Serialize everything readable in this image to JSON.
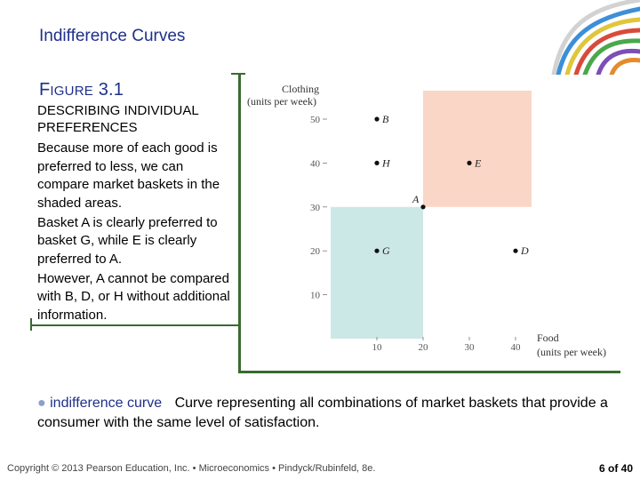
{
  "slide_title": "Indifference Curves",
  "figure": {
    "label_big": "F",
    "label_small": "IGURE",
    "label_num": "3.1",
    "heading": "DESCRIBING INDIVIDUAL PREFERENCES",
    "caption": [
      "Because more of each good is preferred to less, we can compare market baskets in the shaded areas.",
      "Basket A is clearly preferred to basket G, while E is clearly preferred to A.",
      "However, A cannot be compared with B, D, or H without additional information."
    ]
  },
  "chart_data": {
    "type": "scatter",
    "ylabel": "Clothing",
    "ylabel_units": "(units per week)",
    "xlabel": "Food",
    "xlabel_units": "(units per week)",
    "xlim": [
      0,
      40
    ],
    "ylim": [
      0,
      50
    ],
    "x_ticks": [
      10,
      20,
      30,
      40
    ],
    "y_ticks": [
      10,
      20,
      30,
      40,
      50
    ],
    "points": [
      {
        "name": "A",
        "x": 20,
        "y": 30
      },
      {
        "name": "B",
        "x": 10,
        "y": 50
      },
      {
        "name": "D",
        "x": 40,
        "y": 20
      },
      {
        "name": "E",
        "x": 30,
        "y": 40
      },
      {
        "name": "G",
        "x": 10,
        "y": 20
      },
      {
        "name": "H",
        "x": 10,
        "y": 40
      }
    ],
    "shaded_regions": [
      {
        "name": "preferred-to-A",
        "color": "#fad6c7"
      },
      {
        "name": "less-preferred-than-A",
        "color": "#cce8e6"
      }
    ]
  },
  "definition": {
    "bullet": "●",
    "term": "indifference curve",
    "text": "Curve representing all combinations of market baskets that provide a consumer with the same level of satisfaction."
  },
  "footer": "Copyright © 2013  Pearson Education, Inc. • Microeconomics • Pindyck/Rubinfeld, 8e.",
  "page_number": "6 of 40",
  "colors": {
    "accent": "#1f2f8a",
    "frame": "#3a6b2e"
  }
}
